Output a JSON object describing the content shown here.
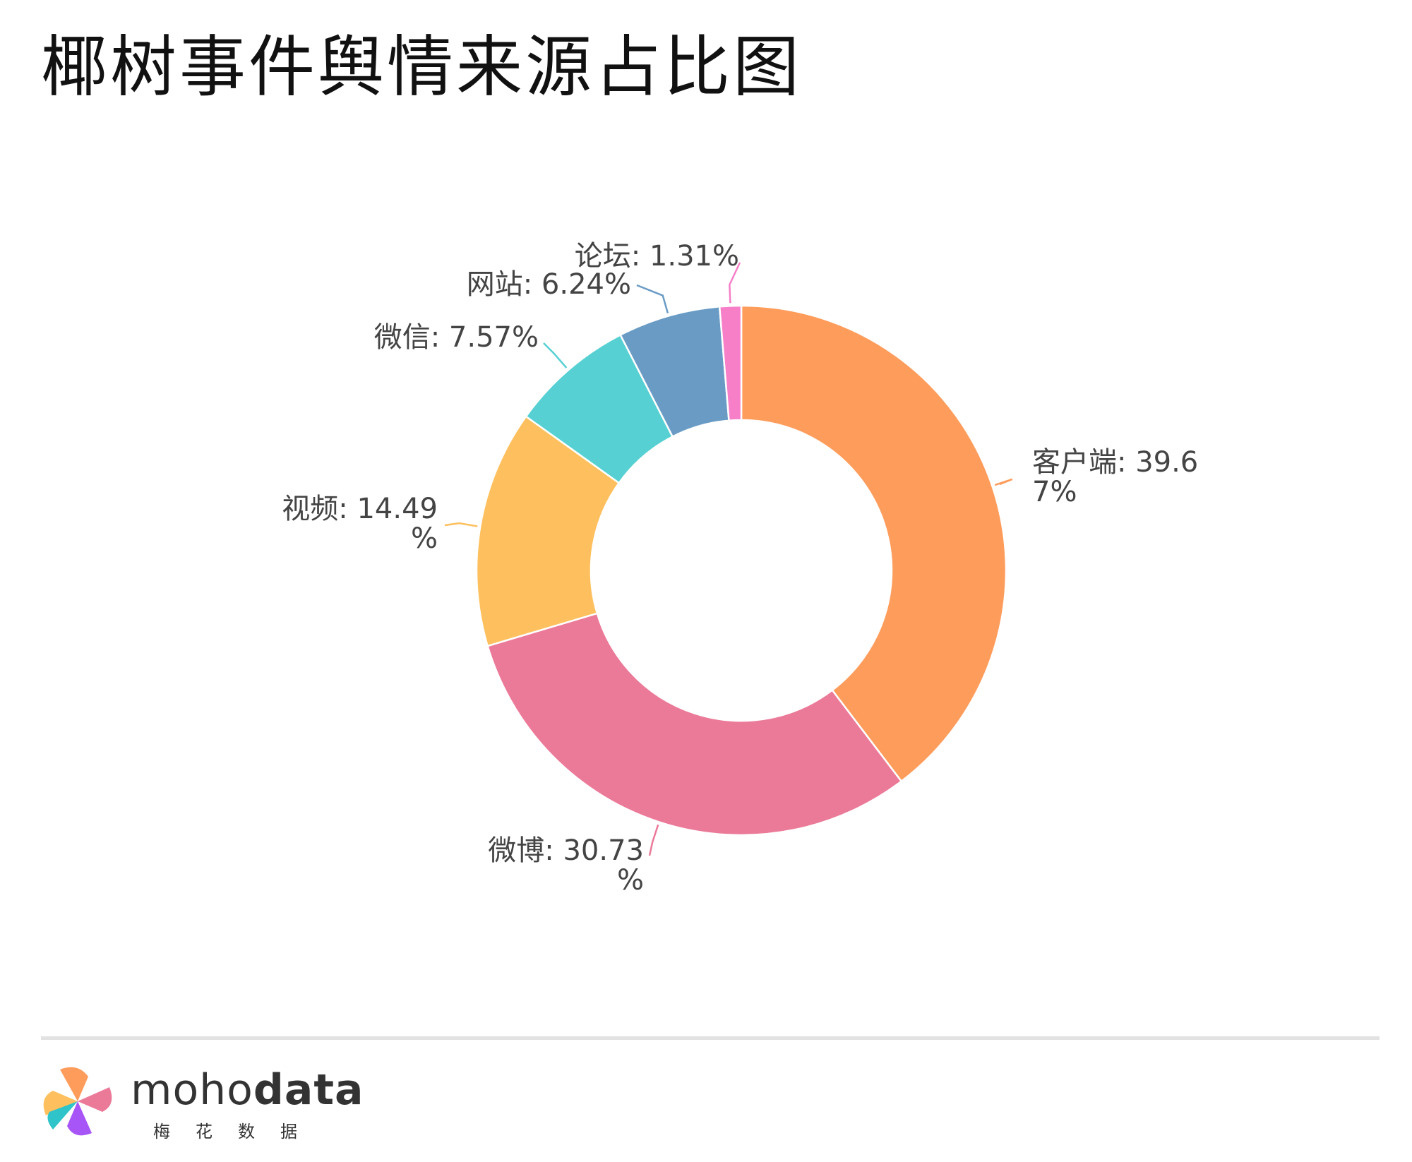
{
  "title": "椰树事件舆情来源占比图",
  "chart_data": {
    "type": "pie",
    "donut": true,
    "title": "椰树事件舆情来源占比图",
    "slices": [
      {
        "name": "客户端",
        "value": 39.67,
        "label_lines": [
          "客户端: 39.6",
          "7%"
        ],
        "color": "#fe9c5c"
      },
      {
        "name": "微博",
        "value": 30.73,
        "label_lines": [
          "微博: 30.73",
          "%"
        ],
        "color": "#eb7a99"
      },
      {
        "name": "视频",
        "value": 14.49,
        "label_lines": [
          "视频: 14.49",
          "%"
        ],
        "color": "#fec05e"
      },
      {
        "name": "微信",
        "value": 7.57,
        "label_lines": [
          "微信: 7.57%"
        ],
        "color": "#56d0d3"
      },
      {
        "name": "网站",
        "value": 6.24,
        "label_lines": [
          "网站: 6.24%"
        ],
        "color": "#6a9bc5"
      },
      {
        "name": "论坛",
        "value": 1.31,
        "label_lines": [
          "论坛: 1.31%"
        ],
        "color": "#f67fc8"
      }
    ]
  },
  "footer": {
    "brand_light": "moho",
    "brand_bold": "data",
    "brand_cn": "梅花数据"
  }
}
